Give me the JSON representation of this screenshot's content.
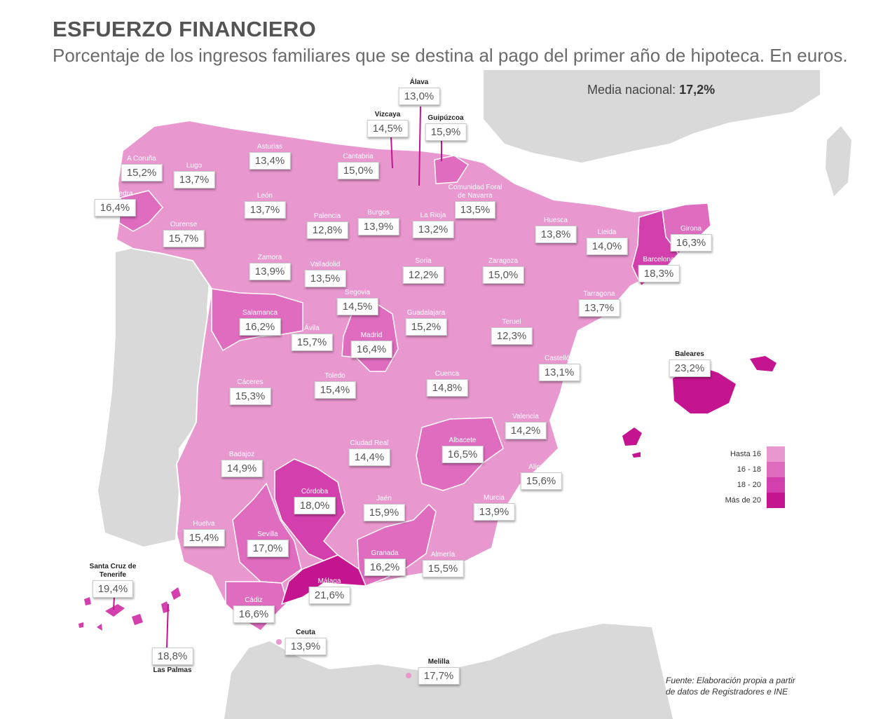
{
  "header": {
    "title": "ESFUERZO FINANCIERO",
    "subtitle": "Porcentaje de los ingresos familiares que se destina al pago del primer año de hipoteca. En euros."
  },
  "media": {
    "label": "Media nacional:",
    "value": "17,2%"
  },
  "legend": [
    {
      "label": "Hasta 16",
      "color": "#e997cf"
    },
    {
      "label": "16 - 18",
      "color": "#df6cbf"
    },
    {
      "label": "18 - 20",
      "color": "#d43fae"
    },
    {
      "label": "Más de 20",
      "color": "#c4148f"
    }
  ],
  "source": {
    "line1": "Fuente: Elaboración propia a partir",
    "line2": "de datos de Registradores e INE"
  },
  "provinces": [
    {
      "name": "Álava",
      "value": "13,0%"
    },
    {
      "name": "Vizcaya",
      "value": "14,5%"
    },
    {
      "name": "Guipúzcoa",
      "value": "15,9%"
    },
    {
      "name": "A Coruña",
      "value": "15,2%"
    },
    {
      "name": "Lugo",
      "value": "13,7%"
    },
    {
      "name": "Asturias",
      "value": "13,4%"
    },
    {
      "name": "Cantabria",
      "value": "15,0%"
    },
    {
      "name": "Pontevedra",
      "value": "16,4%"
    },
    {
      "name": "Ourense",
      "value": "15,7%"
    },
    {
      "name": "León",
      "value": "13,7%"
    },
    {
      "name": "Palencia",
      "value": "12,8%"
    },
    {
      "name": "Burgos",
      "value": "13,9%"
    },
    {
      "name": "La Rioja",
      "value": "13,2%"
    },
    {
      "name": "Comunidad Foral de Navarra",
      "value": "13,5%"
    },
    {
      "name": "Huesca",
      "value": "13,8%"
    },
    {
      "name": "Lleida",
      "value": "14,0%"
    },
    {
      "name": "Girona",
      "value": "16,3%"
    },
    {
      "name": "Barcelona",
      "value": "18,3%"
    },
    {
      "name": "Zamora",
      "value": "13,9%"
    },
    {
      "name": "Valladolid",
      "value": "13,5%"
    },
    {
      "name": "Soria",
      "value": "12,2%"
    },
    {
      "name": "Zaragoza",
      "value": "15,0%"
    },
    {
      "name": "Tarragona",
      "value": "13,7%"
    },
    {
      "name": "Salamanca",
      "value": "16,2%"
    },
    {
      "name": "Segovia",
      "value": "14,5%"
    },
    {
      "name": "Guadalajara",
      "value": "15,2%"
    },
    {
      "name": "Ávila",
      "value": "15,7%"
    },
    {
      "name": "Madrid",
      "value": "16,4%"
    },
    {
      "name": "Teruel",
      "value": "12,3%"
    },
    {
      "name": "Castellón",
      "value": "13,1%"
    },
    {
      "name": "Baleares",
      "value": "23,2%"
    },
    {
      "name": "Cáceres",
      "value": "15,3%"
    },
    {
      "name": "Toledo",
      "value": "15,4%"
    },
    {
      "name": "Cuenca",
      "value": "14,8%"
    },
    {
      "name": "Valencia",
      "value": "14,2%"
    },
    {
      "name": "Badajoz",
      "value": "14,9%"
    },
    {
      "name": "Ciudad Real",
      "value": "14,4%"
    },
    {
      "name": "Albacete",
      "value": "16,5%"
    },
    {
      "name": "Alicante",
      "value": "15,6%"
    },
    {
      "name": "Córdoba",
      "value": "18,0%"
    },
    {
      "name": "Jaén",
      "value": "15,9%"
    },
    {
      "name": "Murcia",
      "value": "13,9%"
    },
    {
      "name": "Huelva",
      "value": "15,4%"
    },
    {
      "name": "Sevilla",
      "value": "17,0%"
    },
    {
      "name": "Granada",
      "value": "16,2%"
    },
    {
      "name": "Almería",
      "value": "15,5%"
    },
    {
      "name": "Málaga",
      "value": "21,6%"
    },
    {
      "name": "Cádiz",
      "value": "16,6%"
    },
    {
      "name": "Santa Cruz de Tenerife",
      "value": "19,4%"
    },
    {
      "name": "Las Palmas",
      "value": "18,8%"
    },
    {
      "name": "Ceuta",
      "value": "13,9%"
    },
    {
      "name": "Melilla",
      "value": "17,7%"
    }
  ]
}
